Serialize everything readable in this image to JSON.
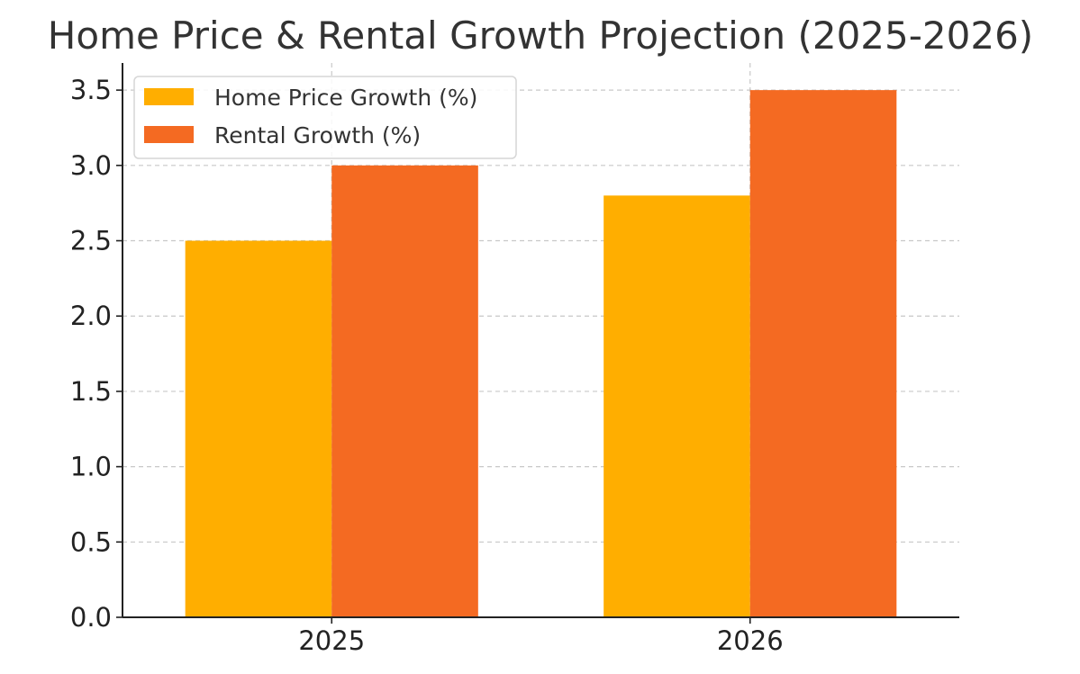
{
  "chart_data": {
    "type": "bar",
    "title": "Home Price & Rental Growth Projection (2025-2026)",
    "xlabel": "",
    "ylabel": "",
    "categories": [
      "2025",
      "2026"
    ],
    "series": [
      {
        "name": "Home Price Growth (%)",
        "values": [
          2.5,
          2.8
        ],
        "color": "#ffae00"
      },
      {
        "name": "Rental Growth (%)",
        "values": [
          3.0,
          3.5
        ],
        "color": "#f46a22"
      }
    ],
    "ylim": [
      0,
      3.68
    ],
    "yticks": [
      0.0,
      0.5,
      1.0,
      1.5,
      2.0,
      2.5,
      3.0,
      3.5
    ],
    "ytick_labels": [
      "0.0",
      "0.5",
      "1.0",
      "1.5",
      "2.0",
      "2.5",
      "3.0",
      "3.5"
    ],
    "grid": true,
    "legend_position": "top-left"
  }
}
